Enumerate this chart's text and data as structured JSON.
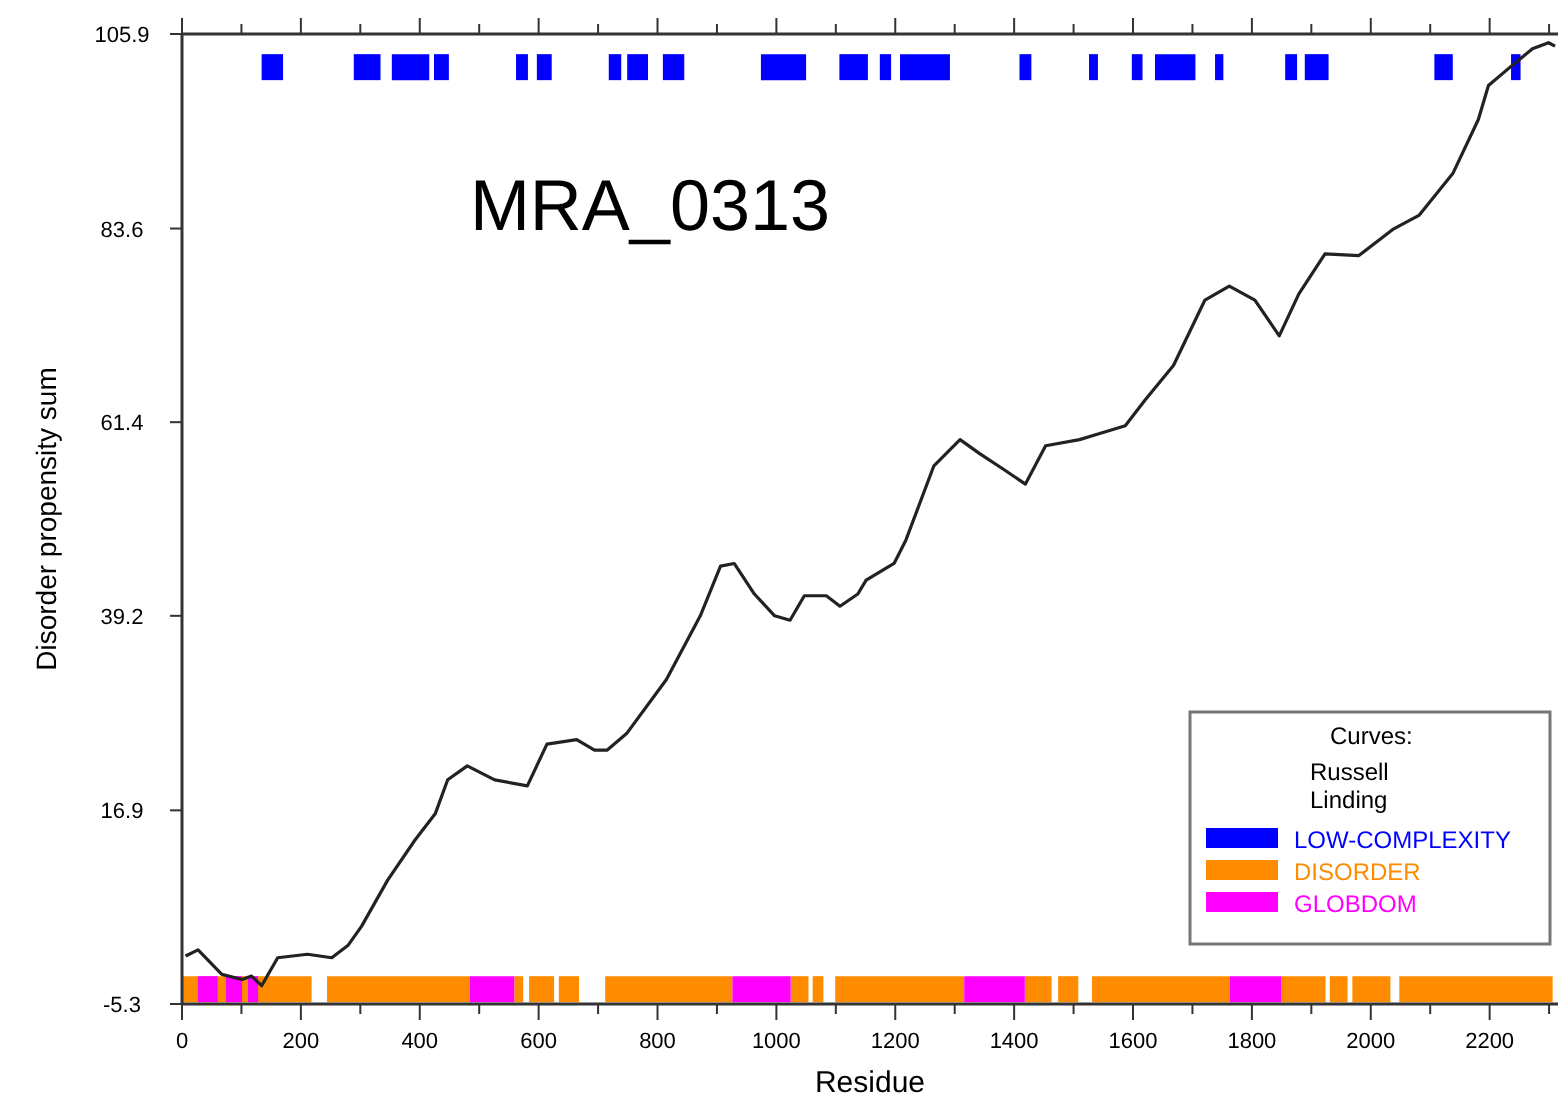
{
  "chart_data": {
    "type": "line",
    "title": "MRA_0313",
    "xlabel": "Residue",
    "ylabel": "Disorder propensity sum",
    "legend_title": "Curves:",
    "annotations": [
      "Russell",
      "Linding"
    ],
    "xlim": [
      0,
      2315
    ],
    "ylim": [
      -5.3,
      105.9
    ],
    "xticks": [
      0,
      {
        "value": 100,
        "label": null
      },
      200,
      {
        "value": 300,
        "label": null
      },
      400,
      {
        "value": 500,
        "label": null
      },
      600,
      {
        "value": 700,
        "label": null
      },
      800,
      {
        "value": 900,
        "label": null
      },
      1000,
      {
        "value": 1100,
        "label": null
      },
      1200,
      {
        "value": 1300,
        "label": null
      },
      1400,
      {
        "value": 1500,
        "label": null
      },
      1600,
      {
        "value": 1700,
        "label": null
      },
      1800,
      {
        "value": 1900,
        "label": null
      },
      2000,
      {
        "value": 2100,
        "label": null
      },
      2200,
      {
        "value": 2300,
        "label": null
      }
    ],
    "yticks": [
      -5.3,
      16.9,
      39.2,
      61.4,
      83.6,
      105.9
    ],
    "grid": false,
    "legend": "bottom right",
    "marker": "none",
    "series": [
      {
        "color": "#222222",
        "x": [
          6,
          27,
          67,
          101,
          117,
          134,
          161,
          211,
          252,
          279,
          302,
          346,
          392,
          426,
          447,
          480,
          526,
          581,
          614,
          664,
          694,
          715,
          748,
          815,
          872,
          906,
          929,
          963,
          997,
          1023,
          1047,
          1084,
          1107,
          1137,
          1151,
          1198,
          1218,
          1265,
          1309,
          1342,
          1382,
          1419,
          1453,
          1510,
          1544,
          1587,
          1621,
          1668,
          1721,
          1762,
          1805,
          1846,
          1879,
          1923,
          1980,
          2037,
          2081,
          2138,
          2181,
          2198,
          2238,
          2272,
          2299,
          2310
        ],
        "values": [
          0.2,
          0.9,
          -1.9,
          -2.5,
          -2.1,
          -3.2,
          0,
          0.4,
          0,
          1.4,
          3.6,
          8.9,
          13.5,
          16.5,
          20.4,
          22,
          20.4,
          19.7,
          24.5,
          25,
          23.8,
          23.8,
          25.7,
          31.9,
          39.2,
          44.9,
          45.2,
          41.7,
          39.2,
          38.7,
          41.5,
          41.5,
          40.3,
          41.7,
          43.3,
          45.2,
          47.9,
          56.4,
          59.4,
          57.8,
          56,
          54.3,
          58.7,
          59.4,
          60.1,
          61,
          64,
          67.9,
          75.4,
          77,
          75.4,
          71.3,
          76.1,
          80.7,
          80.5,
          83.5,
          85.1,
          89.9,
          96.1,
          100,
          102.3,
          104.2,
          104.9,
          104.5
        ]
      },
      {
        "name": "LOW-COMPLEXITY",
        "color": "#0000ff",
        "x": [
          134,
          170
        ],
        "values": [
          102.1,
          102.1
        ]
      },
      {
        "color": "#0000ff",
        "x": [
          289,
          334
        ],
        "values": [
          102.1,
          102.1
        ]
      },
      {
        "color": "#0000ff",
        "x": [
          353,
          416
        ],
        "values": [
          102.1,
          102.1
        ]
      },
      {
        "color": "#0000ff",
        "x": [
          424,
          449
        ],
        "values": [
          102.1,
          102.1
        ]
      },
      {
        "color": "#0000ff",
        "x": [
          562,
          582
        ],
        "values": [
          102.1,
          102.1
        ]
      },
      {
        "color": "#0000ff",
        "x": [
          597,
          622
        ],
        "values": [
          102.1,
          102.1
        ]
      },
      {
        "color": "#0000ff",
        "x": [
          718,
          739
        ],
        "values": [
          102.1,
          102.1
        ]
      },
      {
        "color": "#0000ff",
        "x": [
          749,
          784
        ],
        "values": [
          102.1,
          102.1
        ]
      },
      {
        "color": "#0000ff",
        "x": [
          809,
          845
        ],
        "values": [
          102.1,
          102.1
        ]
      },
      {
        "color": "#0000ff",
        "x": [
          974,
          1050
        ],
        "values": [
          102.1,
          102.1
        ]
      },
      {
        "color": "#0000ff",
        "x": [
          1106,
          1154
        ],
        "values": [
          102.1,
          102.1
        ]
      },
      {
        "color": "#0000ff",
        "x": [
          1174,
          1193
        ],
        "values": [
          102.1,
          102.1
        ]
      },
      {
        "color": "#0000ff",
        "x": [
          1208,
          1292
        ],
        "values": [
          102.1,
          102.1
        ]
      },
      {
        "color": "#0000ff",
        "x": [
          1409,
          1429
        ],
        "values": [
          102.1,
          102.1
        ]
      },
      {
        "color": "#0000ff",
        "x": [
          1526,
          1541
        ],
        "values": [
          102.1,
          102.1
        ]
      },
      {
        "color": "#0000ff",
        "x": [
          1598,
          1616
        ],
        "values": [
          102.1,
          102.1
        ]
      },
      {
        "color": "#0000ff",
        "x": [
          1637,
          1705
        ],
        "values": [
          102.1,
          102.1
        ]
      },
      {
        "color": "#0000ff",
        "x": [
          1738,
          1752
        ],
        "values": [
          102.1,
          102.1
        ]
      },
      {
        "color": "#0000ff",
        "x": [
          1856,
          1876
        ],
        "values": [
          102.1,
          102.1
        ]
      },
      {
        "color": "#0000ff",
        "x": [
          1889,
          1929
        ],
        "values": [
          102.1,
          102.1
        ]
      },
      {
        "color": "#0000ff",
        "x": [
          2107,
          2138
        ],
        "values": [
          102.1,
          102.1
        ]
      },
      {
        "color": "#0000ff",
        "x": [
          2236,
          2252
        ],
        "values": [
          102.1,
          102.1
        ]
      },
      {
        "name": "DISORDER",
        "color": "#ff8c00",
        "x": [
          0,
          218
        ],
        "values": [
          -3.6,
          -3.6
        ]
      },
      {
        "color": "#ff8c00",
        "x": [
          244,
          484
        ],
        "values": [
          -3.6,
          -3.6
        ]
      },
      {
        "color": "#ff8c00",
        "x": [
          559,
          574
        ],
        "values": [
          -3.6,
          -3.6
        ]
      },
      {
        "color": "#ff8c00",
        "x": [
          584,
          626
        ],
        "values": [
          -3.6,
          -3.6
        ]
      },
      {
        "color": "#ff8c00",
        "x": [
          634,
          668
        ],
        "values": [
          -3.6,
          -3.6
        ]
      },
      {
        "color": "#ff8c00",
        "x": [
          712,
          926
        ],
        "values": [
          -3.6,
          -3.6
        ]
      },
      {
        "color": "#ff8c00",
        "x": [
          1024,
          1054
        ],
        "values": [
          -3.6,
          -3.6
        ]
      },
      {
        "color": "#ff8c00",
        "x": [
          1061,
          1079
        ],
        "values": [
          -3.6,
          -3.6
        ]
      },
      {
        "color": "#ff8c00",
        "x": [
          1099,
          1316
        ],
        "values": [
          -3.6,
          -3.6
        ]
      },
      {
        "color": "#ff8c00",
        "x": [
          1418,
          1463
        ],
        "values": [
          -3.6,
          -3.6
        ]
      },
      {
        "color": "#ff8c00",
        "x": [
          1474,
          1508
        ],
        "values": [
          -3.6,
          -3.6
        ]
      },
      {
        "color": "#ff8c00",
        "x": [
          1531,
          1763
        ],
        "values": [
          -3.6,
          -3.6
        ]
      },
      {
        "color": "#ff8c00",
        "x": [
          1849,
          1924
        ],
        "values": [
          -3.6,
          -3.6
        ]
      },
      {
        "color": "#ff8c00",
        "x": [
          1931,
          1961
        ],
        "values": [
          -3.6,
          -3.6
        ]
      },
      {
        "color": "#ff8c00",
        "x": [
          1969,
          2033
        ],
        "values": [
          -3.6,
          -3.6
        ]
      },
      {
        "color": "#ff8c00",
        "x": [
          2048,
          2306
        ],
        "values": [
          -3.6,
          -3.6
        ]
      },
      {
        "name": "GLOBDOM",
        "color": "#ff00ff",
        "x": [
          27,
          60
        ],
        "values": [
          -3.6,
          -3.6
        ]
      },
      {
        "color": "#ff00ff",
        "x": [
          74,
          101
        ],
        "values": [
          -3.6,
          -3.6
        ]
      },
      {
        "color": "#ff00ff",
        "x": [
          111,
          128
        ],
        "values": [
          -3.6,
          -3.6
        ]
      },
      {
        "color": "#ff00ff",
        "x": [
          484,
          559
        ],
        "values": [
          -3.6,
          -3.6
        ]
      },
      {
        "color": "#ff00ff",
        "x": [
          926,
          1024
        ],
        "values": [
          -3.6,
          -3.6
        ]
      },
      {
        "color": "#ff00ff",
        "x": [
          1316,
          1418
        ],
        "values": [
          -3.6,
          -3.6
        ]
      },
      {
        "color": "#ff00ff",
        "x": [
          1763,
          1849
        ],
        "values": [
          -3.6,
          -3.6
        ]
      }
    ]
  }
}
